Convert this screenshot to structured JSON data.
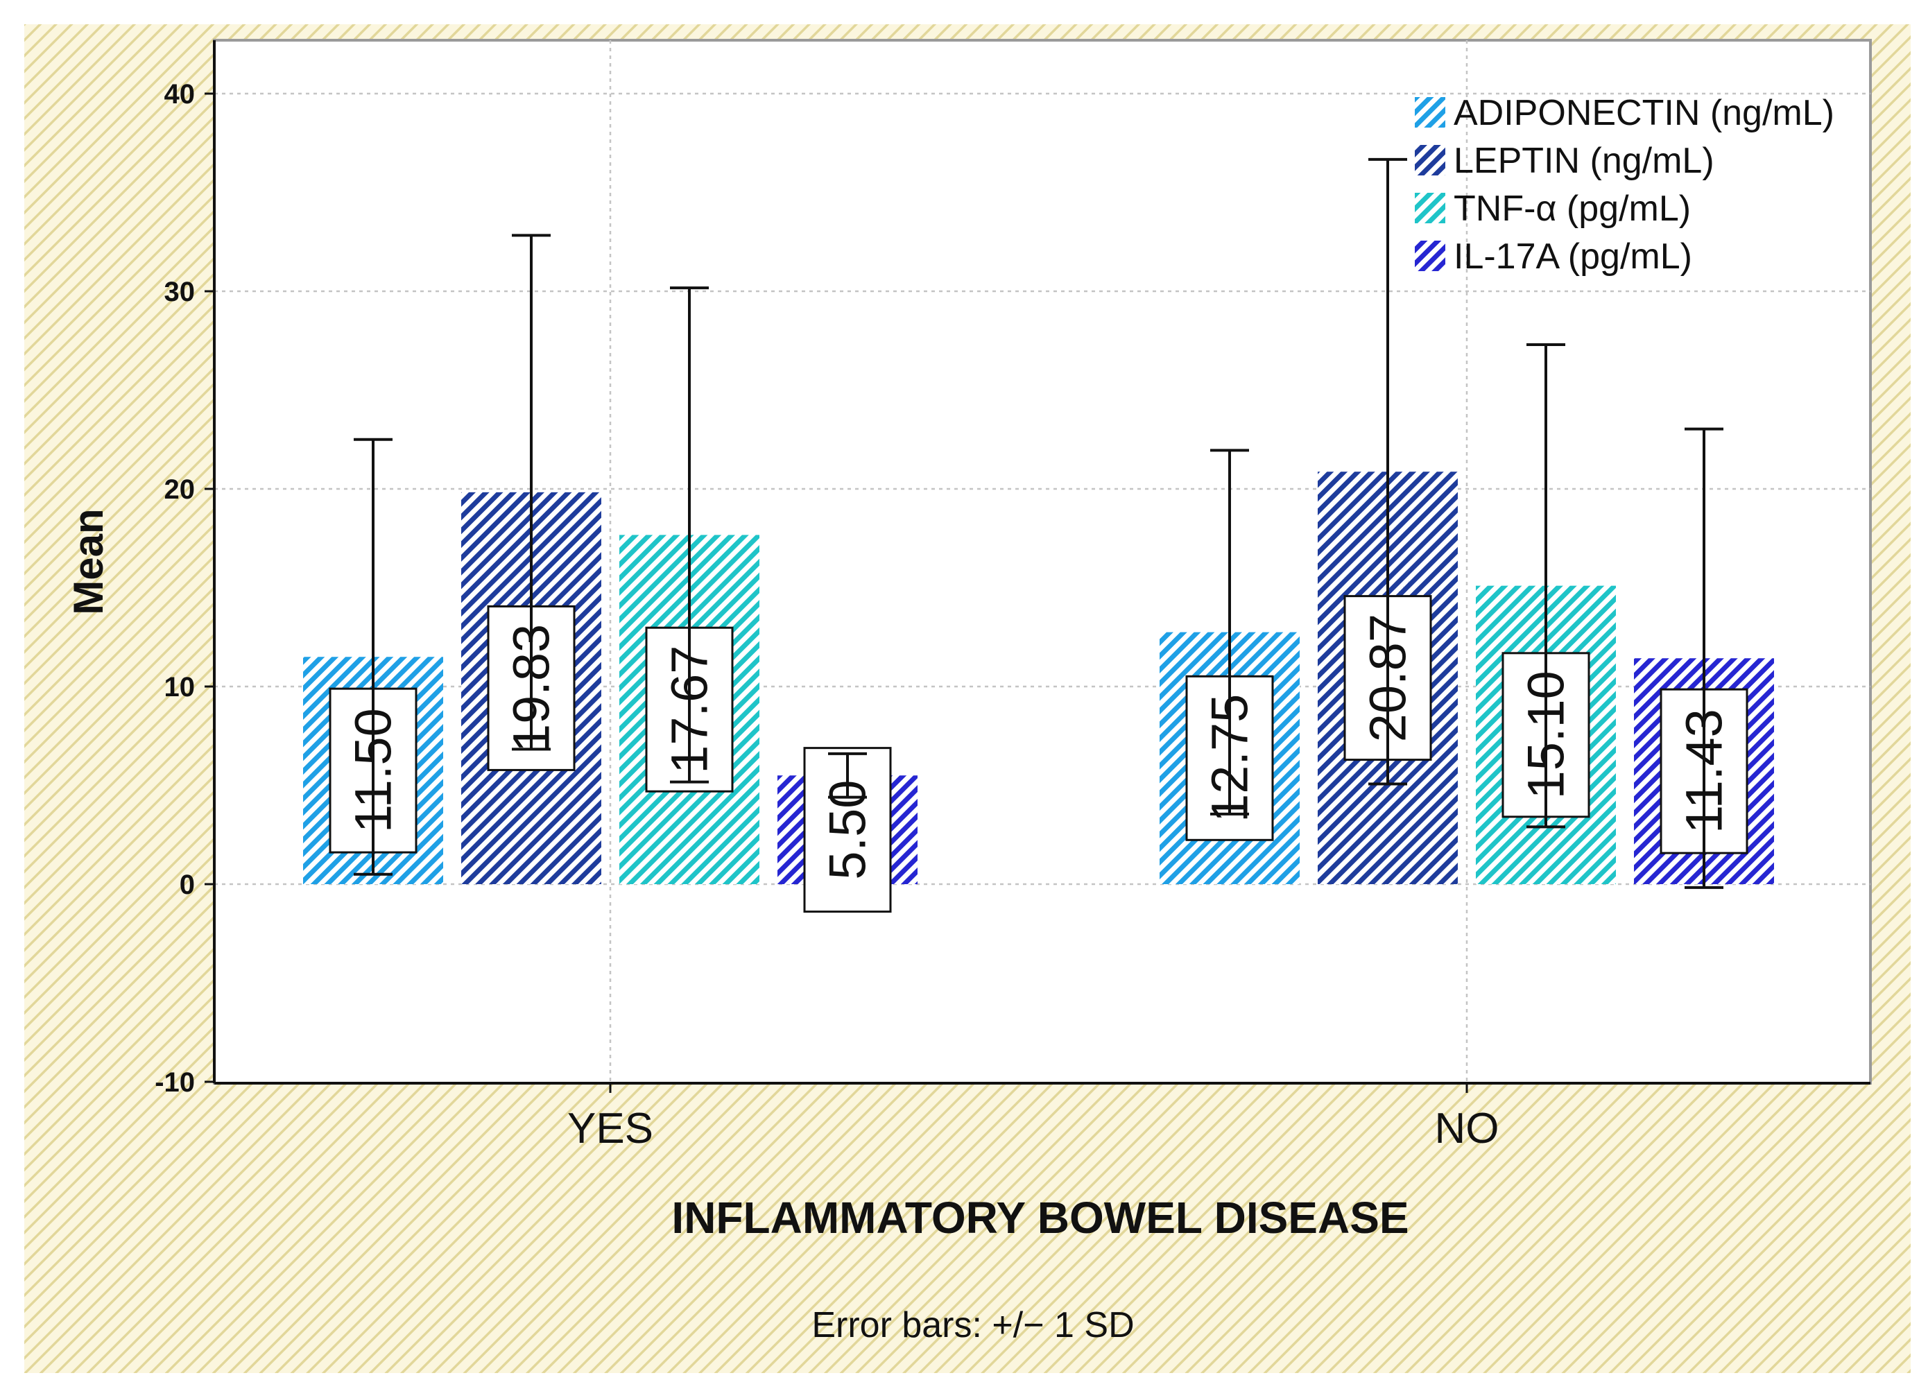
{
  "chart_data": {
    "type": "bar",
    "title": "",
    "xlabel": "INFLAMMATORY BOWEL DISEASE",
    "ylabel": "Mean",
    "ylim": [
      -10,
      40
    ],
    "yticks": [
      -10,
      0,
      10,
      20,
      30,
      40
    ],
    "grid": true,
    "legend_position": "top-right",
    "footnote": "Error bars: +/− 1 SD",
    "categories": [
      "YES",
      "NO"
    ],
    "series": [
      {
        "name": "ADIPONECTIN (ng/mL)",
        "color": "#1fa0e6",
        "values": [
          11.5,
          12.75
        ],
        "labels": [
          "11.50",
          "12.75"
        ],
        "sd": [
          11.0,
          9.2
        ]
      },
      {
        "name": "LEPTIN (ng/mL)",
        "color": "#1e3c9c",
        "values": [
          19.83,
          20.87
        ],
        "labels": [
          "19.83",
          "20.87"
        ],
        "sd": [
          13.0,
          15.8
        ]
      },
      {
        "name": "TNF-α (pg/mL)",
        "color": "#1fc4c8",
        "values": [
          17.67,
          15.1
        ],
        "labels": [
          "17.67",
          "15.10"
        ],
        "sd": [
          12.5,
          12.2
        ]
      },
      {
        "name": "IL-17A (pg/mL)",
        "color": "#2626d2",
        "values": [
          5.5,
          11.43
        ],
        "labels": [
          "5.50",
          "11.43"
        ],
        "sd": [
          1.1,
          11.6
        ]
      }
    ]
  }
}
